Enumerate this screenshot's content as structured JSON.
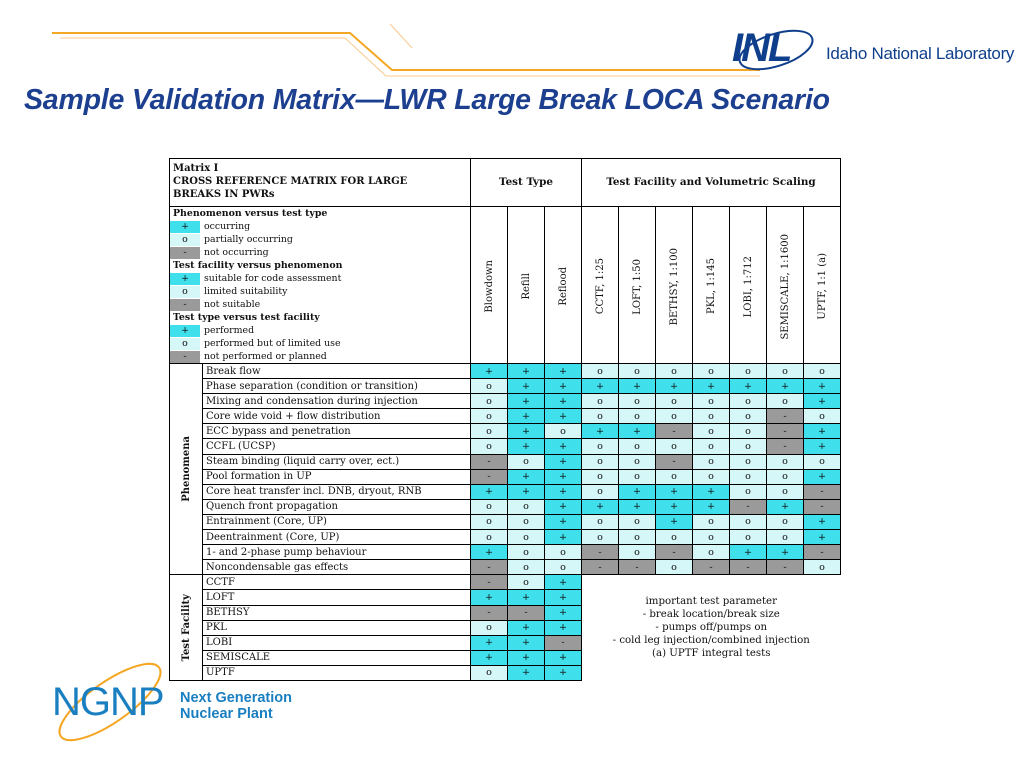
{
  "header": {
    "org_mark": "INL",
    "org_name": "Idaho National Laboratory",
    "title": "Sample Validation Matrix—LWR Large Break LOCA Scenario"
  },
  "colors": {
    "title": "#1d3f8f",
    "plus": "#3fe0ec",
    "o": "#d6f7f8",
    "dash": "#9a9a9a",
    "accent_orange": "#f5a623",
    "ngnp_blue": "#1a7fc1"
  },
  "matrix": {
    "title_lines": [
      "Matrix I",
      "CROSS REFERENCE MATRIX FOR LARGE",
      "BREAKS IN PWRs"
    ],
    "group_headers": [
      "Test Type",
      "Test Facility and Volumetric Scaling"
    ],
    "legend": [
      {
        "heading": "Phenomenon versus test type"
      },
      {
        "symbol": "+",
        "text": "occurring",
        "kind": "plus"
      },
      {
        "symbol": "o",
        "text": "partially occurring",
        "kind": "o"
      },
      {
        "symbol": "-",
        "text": "not occurring",
        "kind": "dash"
      },
      {
        "heading": "Test facility versus phenomenon"
      },
      {
        "symbol": "+",
        "text": "suitable for code assessment",
        "kind": "plus"
      },
      {
        "symbol": "o",
        "text": "limited suitability",
        "kind": "o"
      },
      {
        "symbol": "-",
        "text": "not suitable",
        "kind": "dash"
      },
      {
        "heading": "Test type versus test facility"
      },
      {
        "symbol": "+",
        "text": "performed",
        "kind": "plus"
      },
      {
        "symbol": "o",
        "text": "performed but of limited use",
        "kind": "o"
      },
      {
        "symbol": "-",
        "text": "not performed or planned",
        "kind": "dash"
      }
    ],
    "columns": [
      "Blowdown",
      "Refill",
      "Reflood",
      "CCTF, 1:25",
      "LOFT, 1:50",
      "BETHSY, 1:100",
      "PKL, 1:145",
      "LOBI, 1:712",
      "SEMISCALE, 1:1600",
      "UPTF, 1:1 (a)"
    ],
    "phenomena_label": "Phenomena",
    "phenomena": [
      {
        "label": "Break flow",
        "cells": [
          "+",
          "+",
          "+",
          "o",
          "o",
          "o",
          "o",
          "o",
          "o",
          "o"
        ]
      },
      {
        "label": "Phase separation (condition or transition)",
        "cells": [
          "o",
          "+",
          "+",
          "+",
          "+",
          "+",
          "+",
          "+",
          "+",
          "+"
        ]
      },
      {
        "label": "Mixing and condensation during injection",
        "cells": [
          "o",
          "+",
          "+",
          "o",
          "o",
          "o",
          "o",
          "o",
          "o",
          "+"
        ]
      },
      {
        "label": "Core wide void + flow distribution",
        "cells": [
          "o",
          "+",
          "+",
          "o",
          "o",
          "o",
          "o",
          "o",
          "-",
          "o"
        ]
      },
      {
        "label": "ECC bypass and penetration",
        "cells": [
          "o",
          "+",
          "o",
          "+",
          "+",
          "-",
          "o",
          "o",
          "-",
          "+"
        ]
      },
      {
        "label": "CCFL (UCSP)",
        "cells": [
          "o",
          "+",
          "+",
          "o",
          "o",
          "o",
          "o",
          "o",
          "-",
          "+"
        ]
      },
      {
        "label": "Steam binding (liquid carry over, ect.)",
        "cells": [
          "-",
          "o",
          "+",
          "o",
          "o",
          "-",
          "o",
          "o",
          "o",
          "o"
        ]
      },
      {
        "label": "Pool formation in UP",
        "cells": [
          "-",
          "+",
          "+",
          "o",
          "o",
          "o",
          "o",
          "o",
          "o",
          "+"
        ]
      },
      {
        "label": "Core heat transfer incl. DNB, dryout, RNB",
        "cells": [
          "+",
          "+",
          "+",
          "o",
          "+",
          "+",
          "+",
          "o",
          "o",
          "-"
        ]
      },
      {
        "label": "Quench front propagation",
        "cells": [
          "o",
          "o",
          "+",
          "+",
          "+",
          "+",
          "+",
          "-",
          "+",
          "-"
        ]
      },
      {
        "label": "Entrainment (Core, UP)",
        "cells": [
          "o",
          "o",
          "+",
          "o",
          "o",
          "+",
          "o",
          "o",
          "o",
          "+"
        ]
      },
      {
        "label": "Deentrainment (Core, UP)",
        "cells": [
          "o",
          "o",
          "+",
          "o",
          "o",
          "o",
          "o",
          "o",
          "o",
          "+"
        ]
      },
      {
        "label": "1- and 2-phase pump behaviour",
        "cells": [
          "+",
          "o",
          "o",
          "-",
          "o",
          "-",
          "o",
          "+",
          "+",
          "-"
        ]
      },
      {
        "label": "Noncondensable gas effects",
        "cells": [
          "-",
          "o",
          "o",
          "-",
          "-",
          "o",
          "-",
          "-",
          "-",
          "o"
        ]
      }
    ],
    "facility_label": "Test Facility",
    "facilities": [
      {
        "label": "CCTF",
        "cells": [
          "-",
          "o",
          "+"
        ]
      },
      {
        "label": "LOFT",
        "cells": [
          "+",
          "+",
          "+"
        ]
      },
      {
        "label": "BETHSY",
        "cells": [
          "-",
          "-",
          "+"
        ]
      },
      {
        "label": "PKL",
        "cells": [
          "o",
          "+",
          "+"
        ]
      },
      {
        "label": "LOBI",
        "cells": [
          "+",
          "+",
          "-"
        ]
      },
      {
        "label": "SEMISCALE",
        "cells": [
          "+",
          "+",
          "+"
        ]
      },
      {
        "label": "UPTF",
        "cells": [
          "o",
          "+",
          "+"
        ]
      }
    ],
    "notes": [
      "important test parameter",
      "- break location/break size",
      "- pumps off/pumps on",
      "- cold leg injection/combined injection",
      "(a) UPTF integral tests"
    ]
  },
  "footer": {
    "ngnp_mark": "NGNP",
    "ngnp_line1": "Next Generation",
    "ngnp_line2": "Nuclear Plant"
  }
}
